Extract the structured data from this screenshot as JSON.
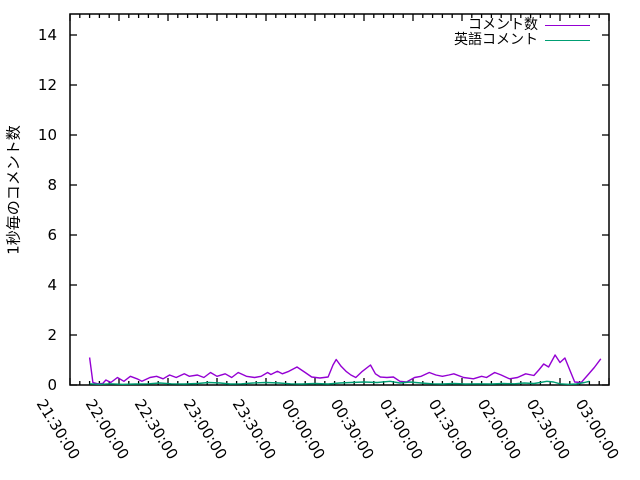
{
  "colors": {
    "background": "#ffffff",
    "axis": "#000000",
    "text": "#000000"
  },
  "legend": {
    "position": "top-right"
  },
  "chart_data": {
    "type": "line",
    "title": "",
    "xlabel": "",
    "ylabel": "1秒毎のコメント数",
    "grid": false,
    "legend_position": "top-right inside",
    "x_axis": {
      "kind": "time",
      "start_label": "21:30:00",
      "end_label": "03:00:00",
      "total_minutes": 330,
      "major_interval_minutes": 30,
      "minor_interval_minutes": 6,
      "tick_labels": [
        "21:30:00",
        "22:00:00",
        "22:30:00",
        "23:00:00",
        "23:30:00",
        "00:00:00",
        "00:30:00",
        "01:00:00",
        "01:30:00",
        "02:00:00",
        "02:30:00",
        "03:00:00"
      ],
      "tick_label_rotation_deg": 58
    },
    "y_axis": {
      "min": 0,
      "max": 14.9,
      "tick_values": [
        0,
        2,
        4,
        6,
        8,
        10,
        12,
        14
      ]
    },
    "series": [
      {
        "name": "コメント数",
        "color": "#9400d3",
        "points": [
          [
            12,
            1.1
          ],
          [
            14,
            0.1
          ],
          [
            17,
            0.05
          ],
          [
            20,
            0.06
          ],
          [
            22,
            0.2
          ],
          [
            25,
            0.1
          ],
          [
            29,
            0.3
          ],
          [
            33,
            0.15
          ],
          [
            37,
            0.35
          ],
          [
            41,
            0.25
          ],
          [
            44,
            0.15
          ],
          [
            49,
            0.3
          ],
          [
            53,
            0.35
          ],
          [
            57,
            0.25
          ],
          [
            61,
            0.4
          ],
          [
            65,
            0.3
          ],
          [
            70,
            0.45
          ],
          [
            73,
            0.35
          ],
          [
            78,
            0.4
          ],
          [
            82,
            0.3
          ],
          [
            86,
            0.5
          ],
          [
            90,
            0.35
          ],
          [
            95,
            0.45
          ],
          [
            99,
            0.3
          ],
          [
            103,
            0.5
          ],
          [
            108,
            0.35
          ],
          [
            113,
            0.3
          ],
          [
            117,
            0.35
          ],
          [
            121,
            0.5
          ],
          [
            123,
            0.42
          ],
          [
            127,
            0.55
          ],
          [
            130,
            0.45
          ],
          [
            134,
            0.55
          ],
          [
            139,
            0.72
          ],
          [
            144,
            0.5
          ],
          [
            148,
            0.32
          ],
          [
            153,
            0.28
          ],
          [
            158,
            0.32
          ],
          [
            161,
            0.8
          ],
          [
            163,
            1.02
          ],
          [
            166,
            0.75
          ],
          [
            169,
            0.55
          ],
          [
            172,
            0.4
          ],
          [
            175,
            0.3
          ],
          [
            179,
            0.55
          ],
          [
            184,
            0.8
          ],
          [
            187,
            0.45
          ],
          [
            190,
            0.32
          ],
          [
            194,
            0.3
          ],
          [
            198,
            0.32
          ],
          [
            202,
            0.15
          ],
          [
            206,
            0.12
          ],
          [
            211,
            0.3
          ],
          [
            215,
            0.35
          ],
          [
            220,
            0.5
          ],
          [
            224,
            0.4
          ],
          [
            228,
            0.35
          ],
          [
            232,
            0.4
          ],
          [
            235,
            0.45
          ],
          [
            241,
            0.3
          ],
          [
            247,
            0.25
          ],
          [
            252,
            0.35
          ],
          [
            255,
            0.3
          ],
          [
            260,
            0.5
          ],
          [
            264,
            0.4
          ],
          [
            269,
            0.25
          ],
          [
            274,
            0.3
          ],
          [
            279,
            0.45
          ],
          [
            284,
            0.38
          ],
          [
            287,
            0.6
          ],
          [
            290,
            0.84
          ],
          [
            293,
            0.72
          ],
          [
            297,
            1.2
          ],
          [
            300,
            0.9
          ],
          [
            303,
            1.08
          ],
          [
            306,
            0.6
          ],
          [
            309,
            0.12
          ],
          [
            313,
            0.1
          ],
          [
            317,
            0.4
          ],
          [
            321,
            0.7
          ],
          [
            325,
            1.05
          ]
        ]
      },
      {
        "name": "英語コメント",
        "color": "#009e73",
        "points": [
          [
            12,
            0.05
          ],
          [
            18,
            0.03
          ],
          [
            25,
            0.05
          ],
          [
            32,
            0.03
          ],
          [
            40,
            0.04
          ],
          [
            48,
            0.05
          ],
          [
            55,
            0.08
          ],
          [
            62,
            0.05
          ],
          [
            70,
            0.04
          ],
          [
            78,
            0.06
          ],
          [
            85,
            0.1
          ],
          [
            92,
            0.08
          ],
          [
            98,
            0.04
          ],
          [
            105,
            0.05
          ],
          [
            112,
            0.08
          ],
          [
            120,
            0.1
          ],
          [
            128,
            0.08
          ],
          [
            135,
            0.05
          ],
          [
            142,
            0.04
          ],
          [
            150,
            0.06
          ],
          [
            158,
            0.04
          ],
          [
            165,
            0.08
          ],
          [
            172,
            0.1
          ],
          [
            180,
            0.12
          ],
          [
            188,
            0.1
          ],
          [
            196,
            0.15
          ],
          [
            202,
            0.08
          ],
          [
            208,
            0.12
          ],
          [
            215,
            0.08
          ],
          [
            222,
            0.05
          ],
          [
            228,
            0.04
          ],
          [
            235,
            0.06
          ],
          [
            242,
            0.04
          ],
          [
            250,
            0.05
          ],
          [
            258,
            0.04
          ],
          [
            265,
            0.06
          ],
          [
            272,
            0.05
          ],
          [
            278,
            0.08
          ],
          [
            284,
            0.06
          ],
          [
            288,
            0.1
          ],
          [
            292,
            0.15
          ],
          [
            296,
            0.12
          ],
          [
            300,
            0.05
          ],
          [
            305,
            0.03
          ],
          [
            310,
            0.04
          ],
          [
            315,
            0.1
          ],
          [
            318,
            0.15
          ]
        ]
      }
    ]
  }
}
